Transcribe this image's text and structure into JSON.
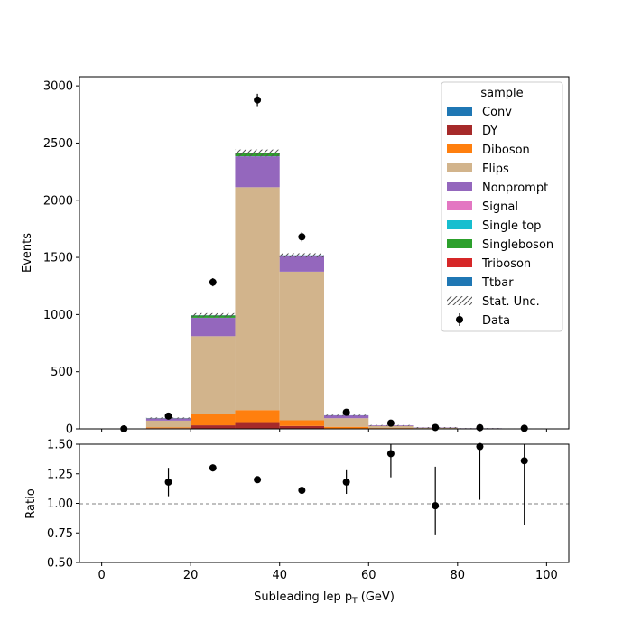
{
  "chart_data": [
    {
      "type": "bar",
      "subtype": "stacked-histogram",
      "xlabel": "Subleading lep p",
      "xlabel_sub": "T",
      "xlabel_unit": " (GeV)",
      "ylabel": "Events",
      "xlim": [
        -5,
        105
      ],
      "ylim": [
        0,
        3080
      ],
      "x_ticks": [
        0,
        20,
        40,
        60,
        80,
        100
      ],
      "y_ticks": [
        0,
        500,
        1000,
        1500,
        2000,
        2500,
        3000
      ],
      "bin_edges": [
        0,
        10,
        20,
        30,
        40,
        50,
        60,
        70,
        80,
        90,
        100
      ],
      "legend_title": "sample",
      "legend_position": "upper-right",
      "series": [
        {
          "name": "Conv",
          "color": "#1f77b4",
          "values": [
            0,
            1,
            3,
            4,
            3,
            1,
            0,
            0,
            0,
            0
          ]
        },
        {
          "name": "DY",
          "color": "#a62a2a",
          "values": [
            0,
            5,
            28,
            55,
            22,
            3,
            1,
            0,
            0,
            0
          ]
        },
        {
          "name": "Diboson",
          "color": "#ff7f0e",
          "values": [
            0,
            6,
            100,
            105,
            50,
            14,
            6,
            4,
            2,
            1
          ]
        },
        {
          "name": "Flips",
          "color": "#d2b48c",
          "values": [
            0,
            60,
            680,
            1950,
            1300,
            75,
            18,
            6,
            2,
            1
          ]
        },
        {
          "name": "Nonprompt",
          "color": "#9467bd",
          "values": [
            0,
            20,
            160,
            270,
            140,
            25,
            6,
            3,
            1,
            1
          ]
        },
        {
          "name": "Signal",
          "color": "#e377c2",
          "values": [
            0,
            0,
            0,
            0,
            0,
            0,
            0,
            0,
            0,
            0
          ]
        },
        {
          "name": "Single top",
          "color": "#17becf",
          "values": [
            0,
            0,
            1,
            1,
            1,
            0,
            0,
            0,
            0,
            0
          ]
        },
        {
          "name": "Singleboson",
          "color": "#2ca02c",
          "values": [
            0,
            2,
            20,
            25,
            0,
            0,
            0,
            0,
            0,
            0
          ]
        },
        {
          "name": "Triboson",
          "color": "#d62728",
          "values": [
            0,
            0,
            0,
            0,
            0,
            0,
            0,
            0,
            0,
            0
          ]
        },
        {
          "name": "Ttbar",
          "color": "#1f77b4",
          "values": [
            0,
            1,
            2,
            3,
            2,
            1,
            0,
            0,
            0,
            0
          ]
        }
      ],
      "stat_unc": {
        "name": "Stat. Unc.",
        "values": [
          1,
          5,
          18,
          30,
          18,
          5,
          3,
          2,
          1,
          1
        ]
      },
      "data": {
        "name": "Data",
        "x": [
          5,
          15,
          25,
          35,
          45,
          55,
          65,
          75,
          85,
          95
        ],
        "y": [
          0,
          112,
          1283,
          2877,
          1680,
          145,
          50,
          12,
          10,
          5
        ],
        "yerr": [
          0,
          11,
          36,
          54,
          41,
          12,
          7,
          3.5,
          3.2,
          2.2
        ]
      }
    },
    {
      "type": "scatter",
      "subtype": "ratio",
      "xlabel": "Subleading lep p",
      "ylabel": "Ratio",
      "xlim": [
        -5,
        105
      ],
      "ylim": [
        0.5,
        1.5
      ],
      "y_ticks": [
        0.5,
        0.75,
        1.0,
        1.25,
        1.5
      ],
      "y_tick_labels": [
        "0.50",
        "0.75",
        "1.00",
        "1.25",
        "1.50"
      ],
      "reference_line": 1.0,
      "x": [
        15,
        25,
        35,
        45,
        55,
        65,
        75,
        85,
        95
      ],
      "y": [
        1.18,
        1.3,
        1.2,
        1.11,
        1.18,
        1.42,
        0.98,
        1.48,
        1.36
      ],
      "yerr_low": [
        0.12,
        0.03,
        0.02,
        0.02,
        0.1,
        0.2,
        0.25,
        0.45,
        0.54
      ],
      "yerr_high": [
        0.12,
        0.03,
        0.02,
        0.02,
        0.1,
        0.2,
        0.33,
        0.45,
        0.54
      ]
    }
  ]
}
